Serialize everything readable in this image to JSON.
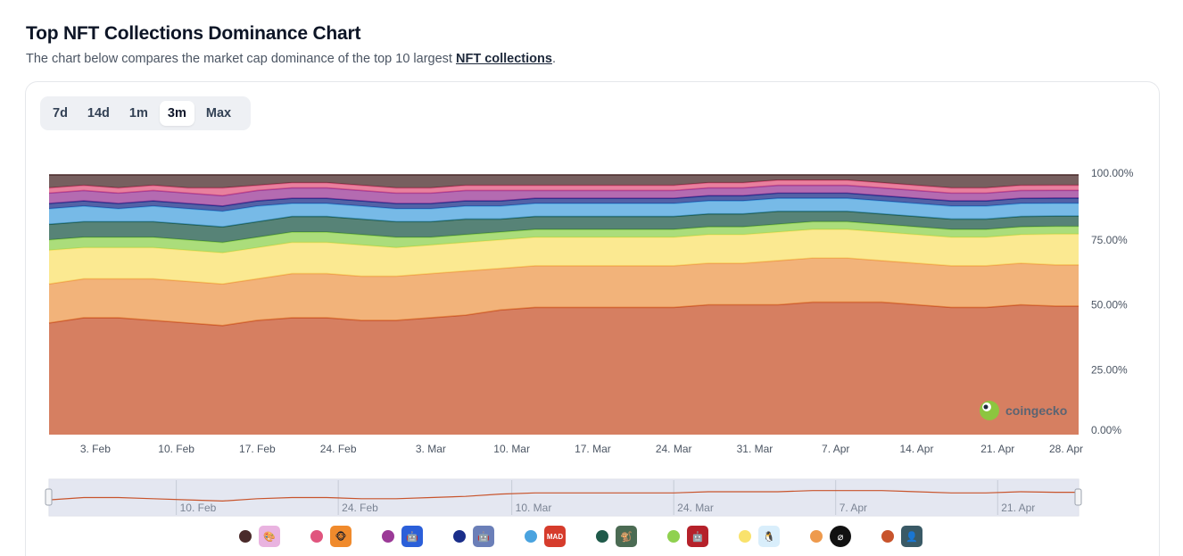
{
  "header": {
    "title": "Top NFT Collections Dominance Chart",
    "subtitle_prefix": "The chart below compares the market cap dominance of the top 10 largest ",
    "subtitle_link": "NFT collections",
    "subtitle_suffix": "."
  },
  "range_buttons": [
    {
      "label": "7d",
      "active": false
    },
    {
      "label": "14d",
      "active": false
    },
    {
      "label": "1m",
      "active": false
    },
    {
      "label": "3m",
      "active": true
    },
    {
      "label": "Max",
      "active": false
    }
  ],
  "watermark": {
    "text": "coingecko"
  },
  "chart_data": {
    "type": "area",
    "stacked": true,
    "percent": true,
    "x": [
      "2024-01-30",
      "2024-02-02",
      "2024-02-05",
      "2024-02-08",
      "2024-02-11",
      "2024-02-14",
      "2024-02-17",
      "2024-02-20",
      "2024-02-23",
      "2024-02-26",
      "2024-02-29",
      "2024-03-03",
      "2024-03-06",
      "2024-03-09",
      "2024-03-12",
      "2024-03-15",
      "2024-03-18",
      "2024-03-21",
      "2024-03-24",
      "2024-03-27",
      "2024-03-30",
      "2024-04-02",
      "2024-04-05",
      "2024-04-08",
      "2024-04-11",
      "2024-04-14",
      "2024-04-17",
      "2024-04-20",
      "2024-04-23",
      "2024-04-26",
      "2024-04-28"
    ],
    "x_ticks": [
      "3. Feb",
      "10. Feb",
      "17. Feb",
      "24. Feb",
      "3. Mar",
      "10. Mar",
      "17. Mar",
      "24. Mar",
      "31. Mar",
      "7. Apr",
      "14. Apr",
      "21. Apr",
      "28. Apr"
    ],
    "x_tick_dates": [
      "2024-02-03",
      "2024-02-10",
      "2024-02-17",
      "2024-02-24",
      "2024-03-03",
      "2024-03-10",
      "2024-03-17",
      "2024-03-24",
      "2024-03-31",
      "2024-04-07",
      "2024-04-14",
      "2024-04-21",
      "2024-04-28"
    ],
    "navigator_ticks": [
      "10. Feb",
      "24. Feb",
      "10. Mar",
      "24. Mar",
      "7. Apr",
      "21. Apr"
    ],
    "navigator_tick_dates": [
      "2024-02-10",
      "2024-02-24",
      "2024-03-10",
      "2024-03-24",
      "2024-04-07",
      "2024-04-21"
    ],
    "y_ticks": [
      "0.00%",
      "25.00%",
      "50.00%",
      "75.00%",
      "100.00%"
    ],
    "ylim": [
      0,
      100
    ],
    "series_bottom_to_top": [
      {
        "color": "#c8542c",
        "values": [
          43,
          45,
          45,
          44,
          43,
          42,
          44,
          45,
          45,
          44,
          44,
          45,
          46,
          48,
          49,
          49,
          49,
          49,
          49,
          50,
          50,
          50,
          51,
          51,
          51,
          50,
          49,
          49,
          50,
          50,
          50
        ]
      },
      {
        "color": "#ee9a4d",
        "values": [
          15,
          15,
          15,
          16,
          16,
          16,
          16,
          17,
          17,
          17,
          17,
          17,
          17,
          16,
          16,
          16,
          16,
          16,
          16,
          16,
          16,
          17,
          17,
          17,
          16,
          16,
          16,
          16,
          16,
          16,
          16
        ]
      },
      {
        "color": "#f9e26c",
        "values": [
          13,
          12,
          12,
          12,
          12,
          12,
          12,
          12,
          12,
          12,
          11,
          11,
          11,
          11,
          11,
          11,
          11,
          11,
          11,
          11,
          11,
          11,
          11,
          11,
          11,
          11,
          11,
          11,
          11,
          12,
          12
        ]
      },
      {
        "color": "#8fd14f",
        "values": [
          4,
          4,
          4,
          4,
          4,
          4,
          4,
          4,
          4,
          4,
          4,
          3,
          3,
          3,
          3,
          3,
          3,
          3,
          3,
          3,
          3,
          3,
          3,
          3,
          3,
          3,
          3,
          3,
          3,
          3,
          3
        ]
      },
      {
        "color": "#1f5a4a",
        "values": [
          6,
          6,
          6,
          6,
          6,
          6,
          6,
          6,
          6,
          6,
          6,
          6,
          6,
          5,
          5,
          5,
          5,
          5,
          5,
          5,
          5,
          5,
          4,
          4,
          4,
          4,
          4,
          4,
          4,
          4,
          4
        ]
      },
      {
        "color": "#4aa3df",
        "values": [
          6,
          6,
          5,
          6,
          6,
          6,
          6,
          5,
          5,
          5,
          5,
          5,
          5,
          5,
          5,
          5,
          5,
          5,
          5,
          5,
          5,
          5,
          5,
          5,
          5,
          5,
          5,
          5,
          5,
          5,
          5
        ]
      },
      {
        "color": "#1a2e8a",
        "values": [
          2,
          2,
          2,
          2,
          2,
          2,
          2,
          2,
          2,
          2,
          2,
          2,
          2,
          2,
          2,
          2,
          2,
          2,
          2,
          2,
          2,
          2,
          2,
          2,
          2,
          2,
          2,
          2,
          2,
          2,
          2
        ]
      },
      {
        "color": "#9b3a97",
        "values": [
          4,
          4,
          4,
          4,
          4,
          4,
          4,
          4,
          4,
          4,
          4,
          4,
          4,
          4,
          3,
          3,
          3,
          3,
          3,
          3,
          3,
          3,
          3,
          3,
          3,
          3,
          3,
          3,
          3,
          3,
          3
        ]
      },
      {
        "color": "#e0557e",
        "values": [
          2,
          2,
          2,
          2,
          2,
          3,
          2,
          2,
          2,
          2,
          2,
          2,
          2,
          2,
          2,
          2,
          2,
          2,
          2,
          2,
          2,
          2,
          2,
          2,
          2,
          2,
          2,
          2,
          2,
          2,
          2
        ]
      },
      {
        "color": "#4a2a2a",
        "values": [
          5,
          4,
          5,
          4,
          5,
          5,
          4,
          3,
          3,
          4,
          5,
          5,
          4,
          4,
          4,
          4,
          4,
          4,
          4,
          3,
          3,
          2,
          2,
          2,
          3,
          4,
          5,
          5,
          4,
          4,
          4
        ]
      }
    ]
  },
  "legend": [
    {
      "dot": "#4a2a2a",
      "thumb_bg": "#e9b3e0",
      "thumb_icon": "🎨"
    },
    {
      "dot": "#e0557e",
      "thumb_bg": "#f08a2c",
      "thumb_icon": "🐵"
    },
    {
      "dot": "#9b3a97",
      "thumb_bg": "#2b5fd9",
      "thumb_icon": "🤖"
    },
    {
      "dot": "#1a2e8a",
      "thumb_bg": "#6b7fb8",
      "thumb_icon": "🤖"
    },
    {
      "dot": "#4aa3df",
      "thumb_bg": "#d63c2c",
      "thumb_icon": "MAD"
    },
    {
      "dot": "#1f5a4a",
      "thumb_bg": "#4b6b53",
      "thumb_icon": "🐒"
    },
    {
      "dot": "#8fd14f",
      "thumb_bg": "#b5212a",
      "thumb_icon": "🤖"
    },
    {
      "dot": "#f9e26c",
      "thumb_bg": "#d9eefb",
      "thumb_icon": "🐧"
    },
    {
      "dot": "#ee9a4d",
      "thumb_bg": "#111111",
      "thumb_icon": "⌀"
    },
    {
      "dot": "#c8542c",
      "thumb_bg": "#3a5a66",
      "thumb_icon": "👤"
    }
  ]
}
